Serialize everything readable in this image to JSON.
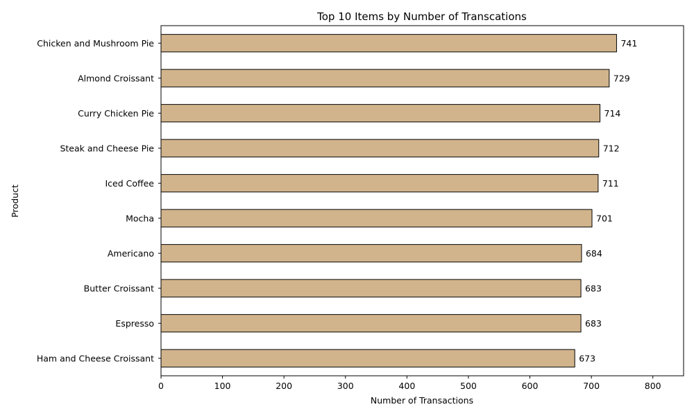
{
  "chart_data": {
    "type": "bar",
    "orientation": "horizontal",
    "title": "Top 10 Items by Number of Transcations",
    "xlabel": "Number of Transactions",
    "ylabel": "Product",
    "categories": [
      "Chicken and Mushroom Pie",
      "Almond Croissant",
      "Curry Chicken Pie",
      "Steak and Cheese Pie",
      "Iced Coffee",
      "Mocha",
      "Americano",
      "Butter Croissant",
      "Espresso",
      "Ham and Cheese Croissant"
    ],
    "values": [
      741,
      729,
      714,
      712,
      711,
      701,
      684,
      683,
      683,
      673
    ],
    "xlim": [
      0,
      850
    ],
    "xticks": [
      0,
      100,
      200,
      300,
      400,
      500,
      600,
      700,
      800
    ],
    "grid": false,
    "bar_color": "#d2b48c",
    "bar_edge_color": "#000000"
  }
}
